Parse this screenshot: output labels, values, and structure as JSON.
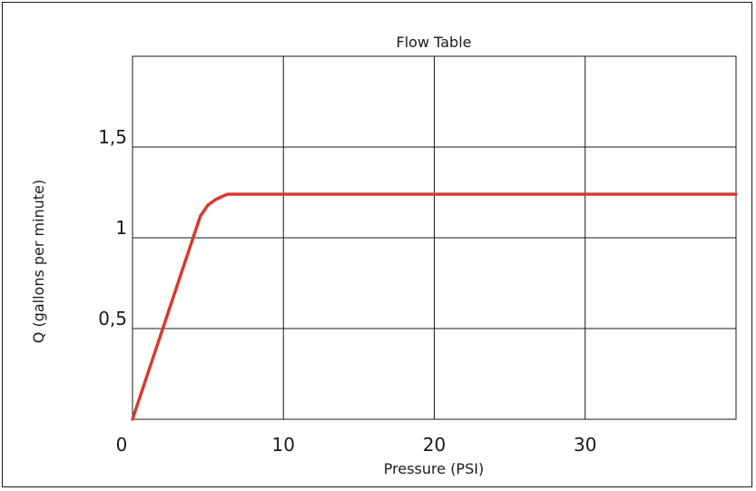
{
  "chart_data": {
    "type": "line",
    "title": "Flow Table",
    "xlabel": "Pressure (PSI)",
    "ylabel": "Q (gallons per minute)",
    "xlim": [
      0,
      40
    ],
    "ylim": [
      0,
      2
    ],
    "x_ticks": [
      0,
      10,
      20,
      30
    ],
    "x_tick_labels": [
      "0",
      "10",
      "20",
      "30"
    ],
    "y_ticks": [
      0.5,
      1,
      1.5
    ],
    "y_tick_labels": [
      "0,5",
      "1",
      "1,5"
    ],
    "grid": true,
    "series": [
      {
        "color": "#d63a32",
        "x": [
          0,
          4.5,
          5.0,
          5.5,
          6.0,
          6.3,
          40
        ],
        "y": [
          0,
          1.12,
          1.18,
          1.21,
          1.23,
          1.24,
          1.24
        ]
      }
    ]
  }
}
